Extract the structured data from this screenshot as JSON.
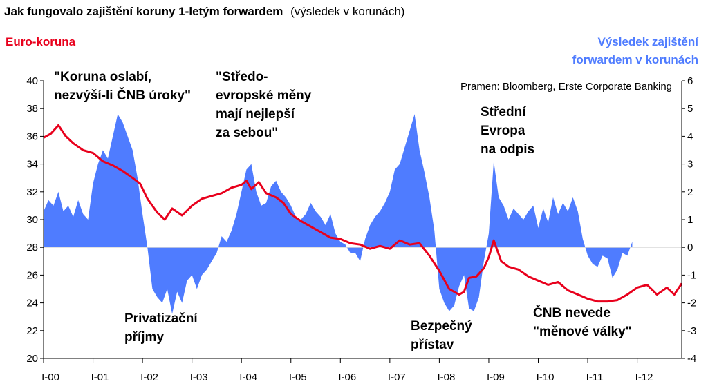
{
  "chart_data": {
    "type": "line",
    "title": "Jak fungovalo zajištění koruny 1-letým forwardem",
    "subtitle": "(výsledek v korunách)",
    "source": "Pramen: Bloomberg, Erste Corporate Banking",
    "left_axis": {
      "label": "Euro-koruna",
      "range": [
        20,
        40
      ],
      "ticks": [
        "20",
        "22",
        "24",
        "26",
        "28",
        "30",
        "32",
        "34",
        "36",
        "38",
        "40"
      ]
    },
    "right_axis": {
      "label_line1": "Výsledek zajištění",
      "label_line2": "forwardem v korunách",
      "range": [
        -4,
        6
      ],
      "ticks": [
        "-4",
        "-3",
        "-2",
        "-1",
        "0",
        "1",
        "2",
        "3",
        "4",
        "5",
        "6"
      ]
    },
    "x_axis": {
      "range": [
        2000.0,
        2012.9
      ],
      "ticks": [
        {
          "label": "I-00",
          "x": 2000
        },
        {
          "label": "I-01",
          "x": 2001
        },
        {
          "label": "I-02",
          "x": 2002
        },
        {
          "label": "I-03",
          "x": 2003
        },
        {
          "label": "I-04",
          "x": 2004
        },
        {
          "label": "I-05",
          "x": 2005
        },
        {
          "label": "I-06",
          "x": 2006
        },
        {
          "label": "I-07",
          "x": 2007
        },
        {
          "label": "I-08",
          "x": 2008
        },
        {
          "label": "I-09",
          "x": 2009
        },
        {
          "label": "I-10",
          "x": 2010
        },
        {
          "label": "I-11",
          "x": 2011
        },
        {
          "label": "I-12",
          "x": 2012
        }
      ]
    },
    "series": [
      {
        "name": "Euro-koruna",
        "axis": "left",
        "color": "#e8001c",
        "x": [
          2000.0,
          2000.15,
          2000.3,
          2000.45,
          2000.6,
          2000.8,
          2001.0,
          2001.2,
          2001.4,
          2001.6,
          2001.8,
          2001.95,
          2002.1,
          2002.3,
          2002.45,
          2002.6,
          2002.8,
          2003.0,
          2003.2,
          2003.4,
          2003.6,
          2003.8,
          2004.0,
          2004.1,
          2004.2,
          2004.35,
          2004.5,
          2004.7,
          2004.85,
          2005.0,
          2005.2,
          2005.4,
          2005.6,
          2005.8,
          2006.0,
          2006.2,
          2006.4,
          2006.6,
          2006.8,
          2007.0,
          2007.2,
          2007.4,
          2007.6,
          2007.8,
          2008.0,
          2008.2,
          2008.4,
          2008.5,
          2008.6,
          2008.75,
          2008.9,
          2009.0,
          2009.1,
          2009.25,
          2009.4,
          2009.6,
          2009.8,
          2010.0,
          2010.2,
          2010.4,
          2010.6,
          2010.8,
          2011.0,
          2011.2,
          2011.4,
          2011.6,
          2011.8,
          2012.0,
          2012.2,
          2012.4,
          2012.6,
          2012.75,
          2012.9
        ],
        "y": [
          35.9,
          36.2,
          36.8,
          36.0,
          35.5,
          35.0,
          34.8,
          34.2,
          33.9,
          33.5,
          33.0,
          32.6,
          31.5,
          30.5,
          30.0,
          30.8,
          30.3,
          31.0,
          31.5,
          31.7,
          31.9,
          32.3,
          32.5,
          32.8,
          32.2,
          32.7,
          31.9,
          31.6,
          31.2,
          30.4,
          29.9,
          29.5,
          29.1,
          28.7,
          28.6,
          28.3,
          28.2,
          27.9,
          28.1,
          27.9,
          28.5,
          28.2,
          28.3,
          27.4,
          26.3,
          25.0,
          24.6,
          24.8,
          25.8,
          25.9,
          26.5,
          27.3,
          28.5,
          27.0,
          26.6,
          26.4,
          25.9,
          25.6,
          25.3,
          25.5,
          24.9,
          24.6,
          24.3,
          24.1,
          24.1,
          24.2,
          24.6,
          25.1,
          25.3,
          24.6,
          25.1,
          24.6,
          25.4
        ]
      },
      {
        "name": "Výsledek zajištění forwardem v korunách",
        "axis": "right",
        "color": "#4f7cff",
        "x": [
          2000.0,
          2000.1,
          2000.2,
          2000.3,
          2000.4,
          2000.5,
          2000.6,
          2000.7,
          2000.8,
          2000.9,
          2001.0,
          2001.1,
          2001.2,
          2001.3,
          2001.4,
          2001.5,
          2001.6,
          2001.7,
          2001.8,
          2001.9,
          2002.0,
          2002.1,
          2002.2,
          2002.3,
          2002.4,
          2002.5,
          2002.6,
          2002.7,
          2002.8,
          2002.9,
          2003.0,
          2003.1,
          2003.2,
          2003.3,
          2003.4,
          2003.5,
          2003.6,
          2003.7,
          2003.8,
          2003.9,
          2004.0,
          2004.1,
          2004.2,
          2004.3,
          2004.4,
          2004.5,
          2004.6,
          2004.7,
          2004.8,
          2004.9,
          2005.0,
          2005.1,
          2005.2,
          2005.3,
          2005.4,
          2005.5,
          2005.6,
          2005.7,
          2005.8,
          2005.9,
          2006.0,
          2006.1,
          2006.2,
          2006.3,
          2006.4,
          2006.5,
          2006.6,
          2006.7,
          2006.8,
          2006.9,
          2007.0,
          2007.1,
          2007.2,
          2007.3,
          2007.4,
          2007.5,
          2007.6,
          2007.7,
          2007.8,
          2007.9,
          2008.0,
          2008.1,
          2008.2,
          2008.3,
          2008.4,
          2008.5,
          2008.6,
          2008.7,
          2008.8,
          2008.9,
          2009.0,
          2009.1,
          2009.2,
          2009.3,
          2009.4,
          2009.5,
          2009.6,
          2009.7,
          2009.8,
          2009.9,
          2010.0,
          2010.1,
          2010.2,
          2010.3,
          2010.4,
          2010.5,
          2010.6,
          2010.7,
          2010.8,
          2010.9,
          2011.0,
          2011.1,
          2011.2,
          2011.3,
          2011.4,
          2011.5,
          2011.6,
          2011.7,
          2011.8,
          2011.9
        ],
        "y": [
          1.3,
          1.7,
          1.5,
          2.0,
          1.3,
          1.5,
          1.1,
          1.7,
          1.2,
          1.0,
          2.3,
          3.0,
          3.5,
          3.2,
          4.0,
          4.8,
          4.5,
          4.0,
          3.5,
          2.5,
          1.2,
          0.0,
          -1.5,
          -1.8,
          -2.0,
          -1.5,
          -2.4,
          -1.6,
          -2.0,
          -1.2,
          -1.0,
          -1.5,
          -1.0,
          -0.8,
          -0.5,
          -0.2,
          0.4,
          0.2,
          0.6,
          1.2,
          2.0,
          2.8,
          3.0,
          2.0,
          1.5,
          1.6,
          2.2,
          2.4,
          2.0,
          1.8,
          1.5,
          1.1,
          1.0,
          1.2,
          1.6,
          1.3,
          1.1,
          0.8,
          1.2,
          0.5,
          0.2,
          0.1,
          -0.2,
          -0.2,
          -0.5,
          0.3,
          0.8,
          1.1,
          1.3,
          1.6,
          2.0,
          2.8,
          3.0,
          3.6,
          4.2,
          4.8,
          3.5,
          2.7,
          1.8,
          0.6,
          -1.5,
          -2.0,
          -2.3,
          -2.1,
          -1.4,
          -1.0,
          -2.2,
          -2.3,
          -1.8,
          -0.5,
          0.5,
          3.1,
          1.8,
          1.5,
          1.0,
          1.4,
          1.2,
          1.0,
          1.3,
          1.5,
          0.7,
          1.4,
          0.9,
          1.8,
          1.2,
          1.6,
          1.3,
          1.8,
          1.3,
          0.3,
          -0.3,
          -0.6,
          -0.7,
          -0.3,
          -0.4,
          -1.1,
          -0.8,
          -0.2,
          -0.3,
          0.2
        ]
      }
    ],
    "annotations": [
      {
        "lines": [
          "\"Koruna oslabí,",
          "nezvýší-li ČNB úroky\""
        ]
      },
      {
        "lines": [
          "\"Středo-",
          "evropské měny",
          "mají nejlepší",
          "za sebou\""
        ]
      },
      {
        "lines": [
          "Střední",
          "Evropa",
          "na odpis"
        ]
      },
      {
        "lines": [
          "Privatizační",
          "příjmy"
        ]
      },
      {
        "lines": [
          "Bezpečný",
          "přístav"
        ]
      },
      {
        "lines": [
          "ČNB nevede",
          "\"měnové války\""
        ]
      }
    ],
    "colors": {
      "euro_koruna": "#e8001c",
      "hedge_result": "#4f7cff",
      "axis": "#000000"
    }
  }
}
